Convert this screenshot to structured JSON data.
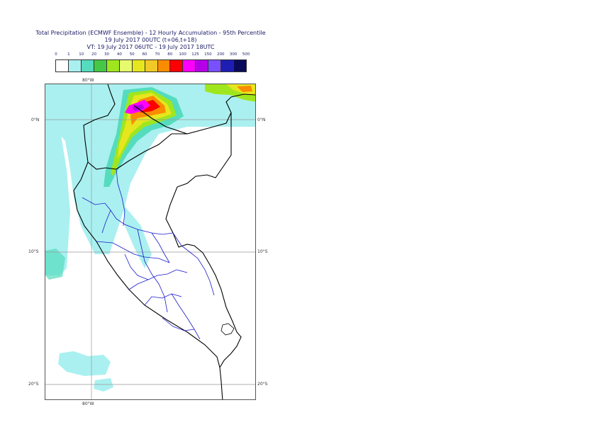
{
  "title": {
    "line1": "Total Precipitation (ECMWF Ensemble) - 12 Hourly Accumulation - 95th Percentile",
    "line2": "19 July 2017 00UTC (t+06,t+18)",
    "line3": "VT: 19 July 2017 06UTC - 19 July 2017 18UTC"
  },
  "legend": {
    "labels": [
      "0",
      "1",
      "10",
      "20",
      "30",
      "40",
      "50",
      "60",
      "70",
      "80",
      "100",
      "125",
      "150",
      "200",
      "300",
      "500"
    ],
    "colors": [
      "#ffffff",
      "#aaf0f0",
      "#55dcbe",
      "#46c846",
      "#a0e61e",
      "#e6fa6e",
      "#e6e61e",
      "#f0c828",
      "#fa8c00",
      "#ff0000",
      "#ff00ff",
      "#b400e6",
      "#7850ff",
      "#1e1eb4",
      "#0a0a5a"
    ]
  },
  "map": {
    "lon_top": "80°W",
    "lon_bottom": "80°W",
    "lat_labels_left": [
      "0°N",
      "10°S",
      "20°S"
    ],
    "lat_labels_right": [
      "0°N",
      "10°S",
      "20°S"
    ]
  }
}
